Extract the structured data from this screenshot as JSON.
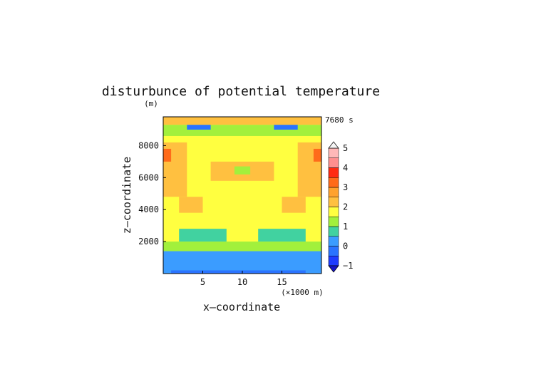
{
  "chart_data": {
    "type": "heatmap",
    "title": "disturbunce of potential temperature",
    "y_unit": "(m)",
    "time_label": "7680 s",
    "xlabel": "x—coordinate",
    "ylabel": "z—coordinate",
    "x_unit": "(×1000 m)",
    "xlim": [
      0,
      20
    ],
    "ylim": [
      0,
      9800
    ],
    "x_ticks": [
      5,
      10,
      15
    ],
    "y_ticks": [
      2000,
      4000,
      6000,
      8000
    ],
    "x_tick_labels": [
      "5",
      "10",
      "15"
    ],
    "y_tick_labels": [
      "2000",
      "4000",
      "6000",
      "8000"
    ],
    "colorbar": {
      "range": [
        -1,
        5
      ],
      "tick_values": [
        -1,
        0,
        1,
        2,
        3,
        4,
        5
      ],
      "tick_labels": [
        "−1",
        "0",
        "1",
        "2",
        "3",
        "4",
        "5"
      ],
      "levels": [
        {
          "from": -1.0,
          "to": -0.5,
          "color": "#1e3cff"
        },
        {
          "from": -0.5,
          "to": 0.0,
          "color": "#2a73ff"
        },
        {
          "from": 0.0,
          "to": 0.5,
          "color": "#3b9cff"
        },
        {
          "from": 0.5,
          "to": 1.0,
          "color": "#41d2a0"
        },
        {
          "from": 1.0,
          "to": 1.5,
          "color": "#a2f03c"
        },
        {
          "from": 1.5,
          "to": 2.0,
          "color": "#ffff40"
        },
        {
          "from": 2.0,
          "to": 2.5,
          "color": "#ffc040"
        },
        {
          "from": 2.5,
          "to": 3.0,
          "color": "#ffa22e"
        },
        {
          "from": 3.0,
          "to": 3.5,
          "color": "#ff6b1a"
        },
        {
          "from": 3.5,
          "to": 4.0,
          "color": "#ff2a12"
        },
        {
          "from": 4.0,
          "to": 4.5,
          "color": "#ff8f8f"
        },
        {
          "from": 4.5,
          "to": 5.0,
          "color": "#ffb8b8"
        }
      ]
    },
    "regions": [
      {
        "x": [
          0,
          20
        ],
        "y": [
          0,
          9800
        ],
        "level": 5
      },
      {
        "x": [
          0,
          20
        ],
        "y": [
          9300,
          9800
        ],
        "level": 6
      },
      {
        "x": [
          0,
          20
        ],
        "y": [
          8600,
          9300
        ],
        "level": 4
      },
      {
        "x": [
          0,
          20
        ],
        "y": [
          1400,
          2000
        ],
        "level": 4
      },
      {
        "x": [
          0,
          20
        ],
        "y": [
          0,
          1400
        ],
        "level": 2
      },
      {
        "x": [
          1,
          18
        ],
        "y": [
          0,
          200
        ],
        "level": 1
      },
      {
        "x": [
          0,
          3
        ],
        "y": [
          4800,
          8200
        ],
        "level": 6
      },
      {
        "x": [
          17,
          20
        ],
        "y": [
          4800,
          8200
        ],
        "level": 6
      },
      {
        "x": [
          2,
          5
        ],
        "y": [
          3800,
          4800
        ],
        "level": 6
      },
      {
        "x": [
          15,
          18
        ],
        "y": [
          3800,
          4800
        ],
        "level": 6
      },
      {
        "x": [
          6,
          14
        ],
        "y": [
          5800,
          7000
        ],
        "level": 6
      },
      {
        "x": [
          2,
          8
        ],
        "y": [
          2000,
          2800
        ],
        "level": 3
      },
      {
        "x": [
          12,
          18
        ],
        "y": [
          2000,
          2800
        ],
        "level": 3
      },
      {
        "x": [
          3,
          6
        ],
        "y": [
          9000,
          9300
        ],
        "level": 1
      },
      {
        "x": [
          14,
          17
        ],
        "y": [
          9000,
          9300
        ],
        "level": 1
      },
      {
        "x": [
          0,
          1
        ],
        "y": [
          7000,
          7800
        ],
        "level": 8
      },
      {
        "x": [
          19,
          20
        ],
        "y": [
          7000,
          7800
        ],
        "level": 8
      },
      {
        "x": [
          9,
          11
        ],
        "y": [
          6200,
          6700
        ],
        "level": 4
      },
      {
        "x": [
          9,
          11
        ],
        "y": [
          7600,
          8200
        ],
        "level": 5
      }
    ]
  }
}
